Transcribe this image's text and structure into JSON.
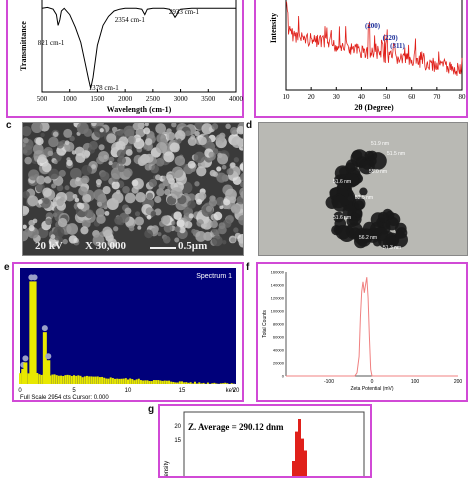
{
  "labels": {
    "c": "c",
    "d": "d",
    "e": "e",
    "f": "f",
    "g": "g"
  },
  "sem": {
    "kv": "20 kV",
    "mag": "X 30,000",
    "scale": "0.5µm"
  },
  "tem_labels": [
    "51.9 nm",
    "51.5 nm",
    "55.0 nm",
    "51.6 nm",
    "52.5 nm",
    "51.6 nm",
    "56.2 nm",
    "51.3 nm"
  ],
  "chart_data": [
    {
      "id": "ftir",
      "type": "line",
      "ylabel": "Transmittance",
      "xlabel": "Wavelength (cm-1)",
      "xticks": [
        500,
        1000,
        1500,
        2000,
        2500,
        3000,
        3500,
        4000
      ],
      "xlim": [
        500,
        4000
      ],
      "annotations": [
        {
          "text": "821 cm-1",
          "x": 821
        },
        {
          "text": "1378 cm-1",
          "x": 1378
        },
        {
          "text": "2354 cm-1",
          "x": 2354
        },
        {
          "text": "2933 cm-1",
          "x": 2933
        }
      ],
      "x": [
        500,
        600,
        700,
        760,
        790,
        821,
        850,
        900,
        1000,
        1100,
        1200,
        1280,
        1340,
        1378,
        1420,
        1500,
        1600,
        1700,
        1800,
        1900,
        2000,
        2100,
        2200,
        2300,
        2354,
        2400,
        2500,
        2600,
        2700,
        2800,
        2850,
        2900,
        2933,
        2960,
        3000,
        3200,
        3400,
        3600,
        3800,
        4000
      ],
      "y": [
        0.93,
        0.94,
        0.92,
        0.86,
        0.74,
        0.8,
        0.9,
        0.93,
        0.86,
        0.72,
        0.55,
        0.32,
        0.14,
        0.04,
        0.16,
        0.52,
        0.74,
        0.84,
        0.9,
        0.92,
        0.93,
        0.93,
        0.93,
        0.92,
        0.86,
        0.92,
        0.93,
        0.93,
        0.93,
        0.92,
        0.88,
        0.83,
        0.86,
        0.9,
        0.92,
        0.93,
        0.93,
        0.93,
        0.93,
        0.93
      ]
    },
    {
      "id": "xrd",
      "type": "line",
      "ylabel": "Intensity",
      "xlabel": "2θ (Degree)",
      "xticks": [
        10,
        20,
        30,
        40,
        50,
        60,
        70,
        80
      ],
      "xlim": [
        10,
        80
      ],
      "peaks": [
        {
          "text": "(200)",
          "x": 43
        },
        {
          "text": "(220)",
          "x": 50
        },
        {
          "text": "(311)",
          "x": 53
        }
      ],
      "color": "#e0201a"
    },
    {
      "id": "eds",
      "type": "bar",
      "title": "Spectrum 1",
      "xticks": [
        0,
        5,
        10,
        15,
        20
      ],
      "xlim": [
        0,
        20
      ],
      "xunit": "keV",
      "footer": "Full Scale 2954 cts Cursor: 0.000",
      "peaks": [
        {
          "x": 1.05,
          "h": 0.95
        },
        {
          "x": 1.35,
          "h": 0.95
        },
        {
          "x": 2.3,
          "h": 0.48
        },
        {
          "x": 2.62,
          "h": 0.22
        },
        {
          "x": 0.3,
          "h": 0.14
        },
        {
          "x": 0.5,
          "h": 0.2
        }
      ]
    },
    {
      "id": "zeta",
      "type": "line",
      "ylabel": "Total Counts",
      "xlabel": "Zeta Potential (mV)",
      "xticks": [
        -100,
        0,
        100,
        200
      ],
      "yticks": [
        0,
        20000,
        40000,
        60000,
        80000,
        100000,
        120000,
        140000,
        160000
      ],
      "xlim": [
        -200,
        200
      ],
      "ylim": [
        0,
        160000
      ],
      "x": [
        -200,
        -60,
        -40,
        -35,
        -30,
        -27,
        -24,
        -21,
        -18,
        -15,
        -12,
        -9,
        -6,
        -3,
        0,
        10,
        200
      ],
      "y": [
        0,
        0,
        0,
        5000,
        30000,
        90000,
        130000,
        145000,
        128000,
        140000,
        152000,
        120000,
        60000,
        10000,
        0,
        0,
        0
      ],
      "color": "#f08080"
    },
    {
      "id": "dls",
      "type": "bar",
      "title": "Z. Average = 290.12 dnm",
      "ylabel": "Intensity",
      "yticks": [
        20,
        15
      ],
      "ylim": [
        0,
        25
      ]
    }
  ]
}
